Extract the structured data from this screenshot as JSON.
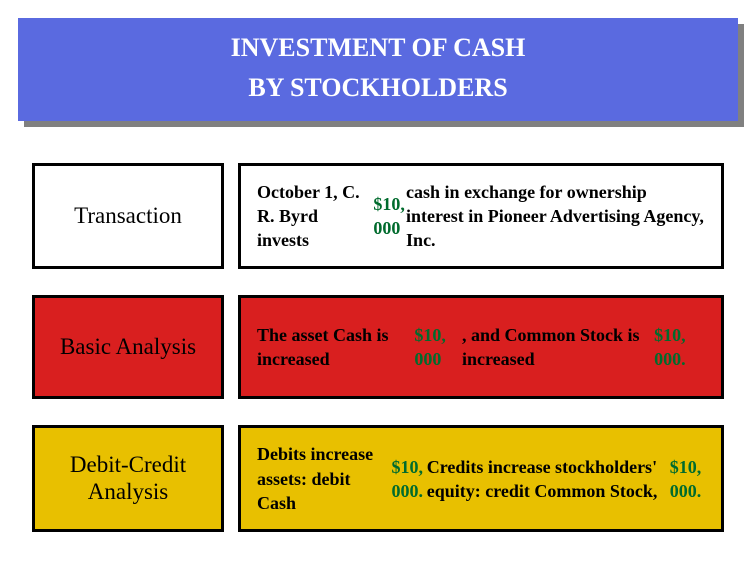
{
  "header": {
    "line1": "INVESTMENT OF CASH",
    "line2": "BY STOCKHOLDERS",
    "bg": "#5a6ae0",
    "fg": "#ffffff"
  },
  "rows": [
    {
      "label": "Transaction",
      "body_parts": [
        {
          "t": "October 1, C. R. Byrd invests "
        },
        {
          "t": "$10, 000",
          "amt": true
        },
        {
          "t": " cash in exchange for ownership interest in Pioneer Advertising Agency, Inc."
        }
      ],
      "bg": "#ffffff"
    },
    {
      "label": "Basic Analysis",
      "body_parts": [
        {
          "t": "The asset Cash is increased "
        },
        {
          "t": "$10, 000",
          "amt": true
        },
        {
          "t": ", and Common Stock is increased "
        },
        {
          "t": "$10, 000.",
          "amt": true
        }
      ],
      "bg": "#d91f1f"
    },
    {
      "label": "Debit-Credit Analysis",
      "body_parts": [
        {
          "t": "Debits increase assets:  debit Cash "
        },
        {
          "t": "$10, 000.",
          "amt": true
        },
        {
          "t": " Credits increase stockholders' equity:  credit Common Stock, "
        },
        {
          "t": "$10, 000.",
          "amt": true
        }
      ],
      "bg": "#e8c000"
    }
  ],
  "amount_color": "#006b2d"
}
